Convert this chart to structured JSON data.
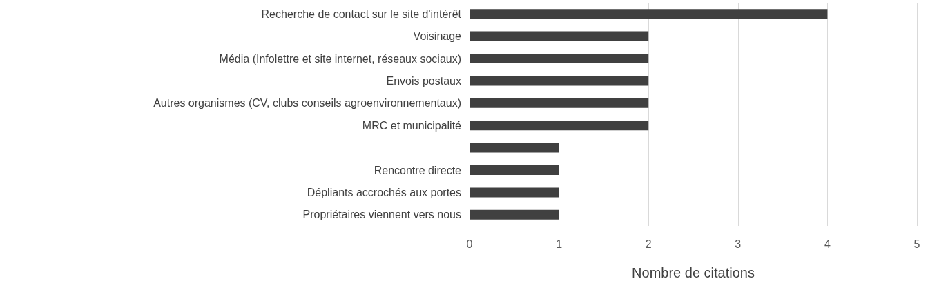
{
  "chart_data": {
    "type": "bar",
    "orientation": "horizontal",
    "xlabel": "Nombre de citations",
    "categories": [
      "Recherche de contact sur le site d'intérêt",
      "Voisinage",
      "Média (Infolettre et site internet, réseaux sociaux)",
      "Envois postaux",
      "Autres organismes (CV, clubs conseils agroenvironnementaux)",
      "MRC et municipalité",
      null,
      "Rencontre directe",
      "Dépliants accrochés aux portes",
      "Propriétaires viennent vers nous"
    ],
    "values": [
      4,
      2,
      2,
      2,
      2,
      2,
      1,
      1,
      1,
      1
    ],
    "color": "#404040",
    "xlim": [
      0,
      5
    ],
    "xticks": [
      0,
      1,
      2,
      3,
      4,
      5
    ],
    "grid": "x"
  }
}
